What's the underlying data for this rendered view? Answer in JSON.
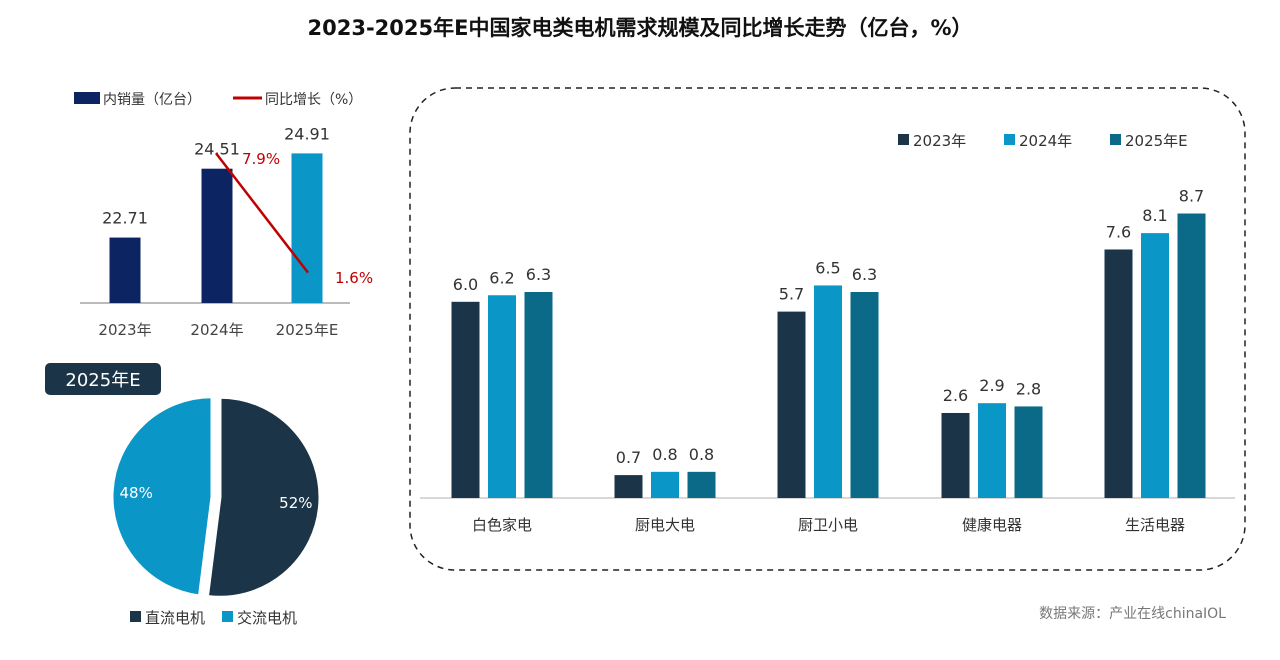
{
  "title": "2023-2025年E中国家电类电机需求规模及同比增长走势（亿台，%）",
  "source": "数据来源：产业在线chinaIOL",
  "colors": {
    "navy": "#0c2461",
    "blue": "#0b96c8",
    "red": "#c00000",
    "c2023": "#1b3447",
    "c2024": "#0b96c8",
    "c2025": "#0a6a88"
  },
  "chart_data": [
    {
      "type": "bar",
      "categories": [
        "2023年",
        "2024年",
        "2025年E"
      ],
      "series": [
        {
          "name": "内销量（亿台）",
          "type": "bar",
          "values": [
            22.71,
            24.51,
            24.91
          ],
          "labels": [
            "22.71",
            "24.51",
            "24.91"
          ]
        },
        {
          "name": "同比增长（%）",
          "type": "line",
          "x": [
            "2024年",
            "2025年E"
          ],
          "values": [
            7.9,
            1.6
          ],
          "labels": [
            "7.9%",
            "1.6%"
          ]
        }
      ],
      "legend": "top-left",
      "grid": false
    },
    {
      "type": "pie",
      "title": "2025年E",
      "slices": [
        {
          "name": "直流电机",
          "value": 52,
          "label": "52%"
        },
        {
          "name": "交流电机",
          "value": 48,
          "label": "48%"
        }
      ],
      "legend": "bottom"
    },
    {
      "type": "bar",
      "categories": [
        "白色家电",
        "厨电大电",
        "厨卫小电",
        "健康电器",
        "生活电器"
      ],
      "series": [
        {
          "name": "2023年",
          "values": [
            6.0,
            0.7,
            5.7,
            2.6,
            7.6
          ]
        },
        {
          "name": "2024年",
          "values": [
            6.2,
            0.8,
            6.5,
            2.9,
            8.1
          ]
        },
        {
          "name": "2025年E",
          "values": [
            6.3,
            0.8,
            6.3,
            2.8,
            8.7
          ]
        }
      ],
      "legend": "top-right",
      "grid": false,
      "ylim": [
        0,
        10
      ]
    }
  ]
}
